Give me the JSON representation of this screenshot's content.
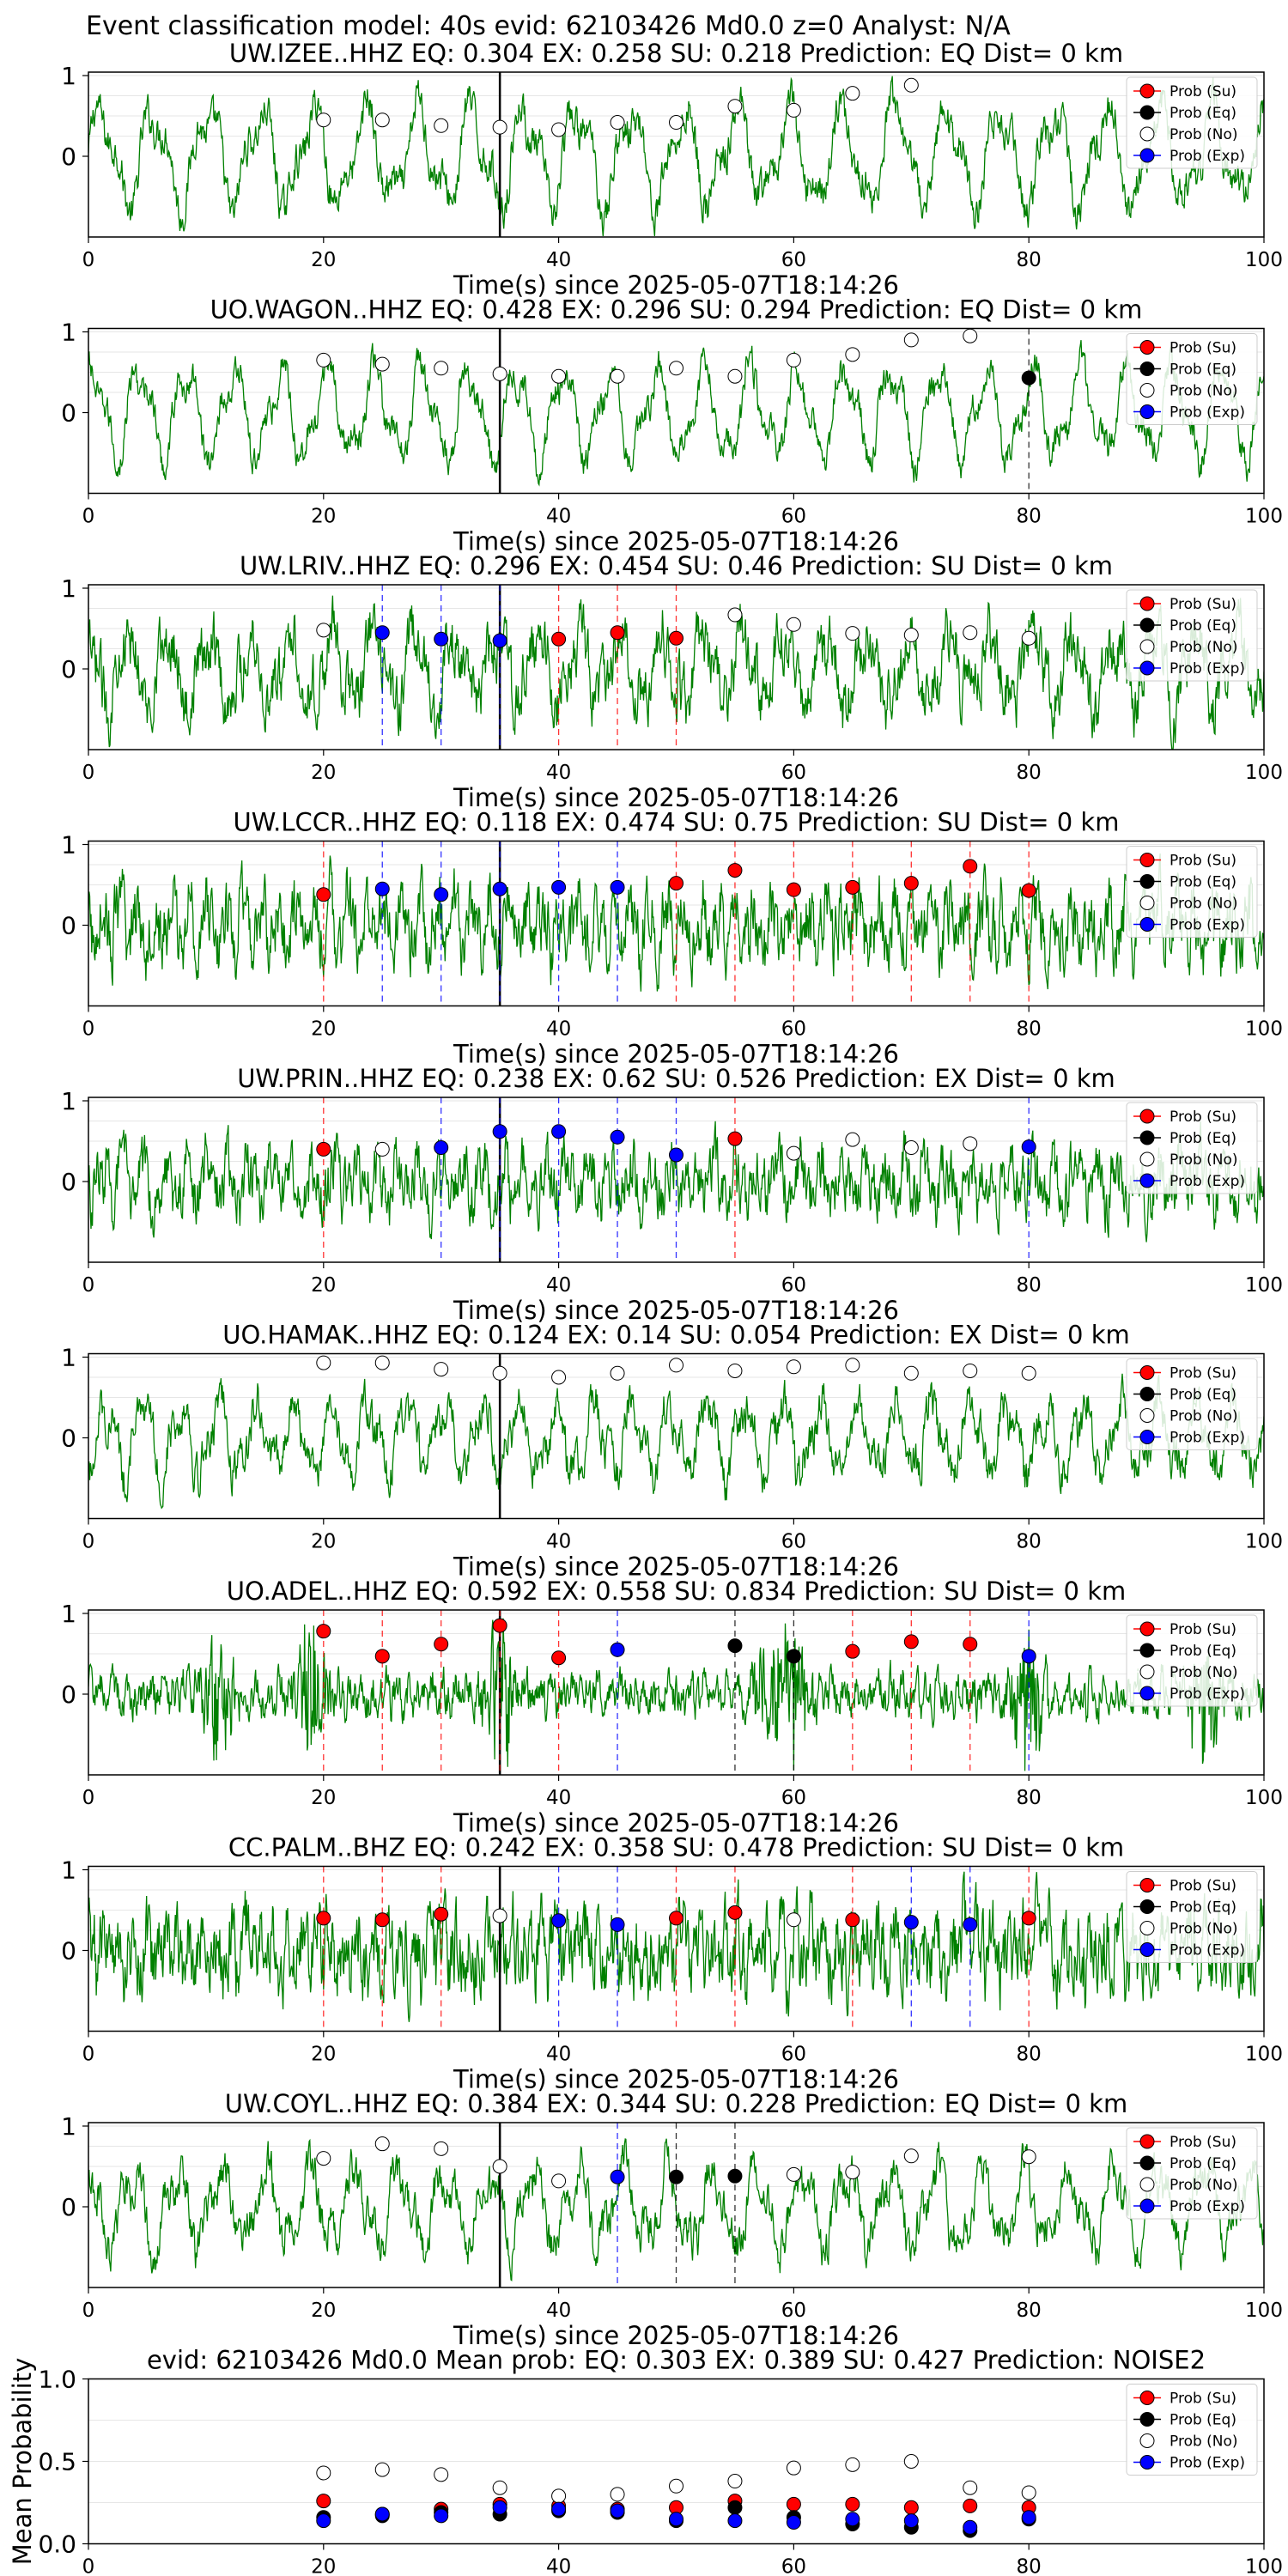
{
  "suptitle": "Event classification model: 40s evid: 62103426 Md0.0 z=0 Analyst: N/A",
  "colors": {
    "waveform": "#008000",
    "su": "#ff0000",
    "eq": "#000000",
    "no": "#ffffff",
    "exp": "#0000ff",
    "arrival": "#000000"
  },
  "legend": [
    "Prob (Su)",
    "Prob (Eq)",
    "Prob (No)",
    "Prob (Exp)"
  ],
  "x_label": "Time(s) since 2025-05-07T18:14:26",
  "x_ticks": [
    0,
    20,
    40,
    60,
    80,
    100
  ],
  "x_range": [
    0,
    100
  ],
  "y_ticks": [
    0,
    1
  ],
  "arrival_time": 35,
  "chart_data": [
    {
      "type": "line",
      "title": "UW.IZEE..HHZ   EQ: 0.304  EX: 0.258  SU: 0.218   Prediction: EQ    Dist= 0 km",
      "waveform": {
        "amp": 0.75,
        "period": 4.5,
        "noise": 0.18
      },
      "markers": [
        {
          "t": 20,
          "p": 0.45,
          "c": "no"
        },
        {
          "t": 25,
          "p": 0.45,
          "c": "no"
        },
        {
          "t": 30,
          "p": 0.38,
          "c": "no"
        },
        {
          "t": 35,
          "p": 0.36,
          "c": "no"
        },
        {
          "t": 40,
          "p": 0.33,
          "c": "no"
        },
        {
          "t": 45,
          "p": 0.42,
          "c": "no"
        },
        {
          "t": 50,
          "p": 0.42,
          "c": "no"
        },
        {
          "t": 55,
          "p": 0.62,
          "c": "no"
        },
        {
          "t": 60,
          "p": 0.57,
          "c": "no"
        },
        {
          "t": 65,
          "p": 0.78,
          "c": "no"
        },
        {
          "t": 70,
          "p": 0.88,
          "c": "no"
        }
      ]
    },
    {
      "type": "line",
      "title": "UO.WAGON..HHZ   EQ: 0.428  EX: 0.296  SU: 0.294   Prediction: EQ    Dist= 0 km",
      "waveform": {
        "amp": 0.7,
        "period": 4.0,
        "noise": 0.15
      },
      "markers": [
        {
          "t": 20,
          "p": 0.65,
          "c": "no"
        },
        {
          "t": 25,
          "p": 0.6,
          "c": "no"
        },
        {
          "t": 30,
          "p": 0.55,
          "c": "no"
        },
        {
          "t": 35,
          "p": 0.48,
          "c": "no"
        },
        {
          "t": 40,
          "p": 0.45,
          "c": "no"
        },
        {
          "t": 45,
          "p": 0.45,
          "c": "no"
        },
        {
          "t": 50,
          "p": 0.55,
          "c": "no"
        },
        {
          "t": 55,
          "p": 0.45,
          "c": "no"
        },
        {
          "t": 60,
          "p": 0.65,
          "c": "no"
        },
        {
          "t": 65,
          "p": 0.72,
          "c": "no"
        },
        {
          "t": 70,
          "p": 0.9,
          "c": "no"
        },
        {
          "t": 75,
          "p": 0.95,
          "c": "no"
        },
        {
          "t": 80,
          "p": 0.43,
          "c": "eq"
        }
      ]
    },
    {
      "type": "line",
      "title": "UW.LRIV..HHZ   EQ: 0.296  EX: 0.454  SU: 0.46   Prediction: SU    Dist= 0 km",
      "waveform": {
        "amp": 0.55,
        "period": 3.5,
        "noise": 0.3
      },
      "markers": [
        {
          "t": 20,
          "p": 0.48,
          "c": "no"
        },
        {
          "t": 25,
          "p": 0.45,
          "c": "exp"
        },
        {
          "t": 30,
          "p": 0.37,
          "c": "exp"
        },
        {
          "t": 35,
          "p": 0.35,
          "c": "exp"
        },
        {
          "t": 40,
          "p": 0.37,
          "c": "su"
        },
        {
          "t": 45,
          "p": 0.45,
          "c": "su"
        },
        {
          "t": 50,
          "p": 0.38,
          "c": "su"
        },
        {
          "t": 55,
          "p": 0.67,
          "c": "no"
        },
        {
          "t": 60,
          "p": 0.55,
          "c": "no"
        },
        {
          "t": 65,
          "p": 0.44,
          "c": "no"
        },
        {
          "t": 70,
          "p": 0.42,
          "c": "no"
        },
        {
          "t": 75,
          "p": 0.45,
          "c": "no"
        },
        {
          "t": 80,
          "p": 0.38,
          "c": "no"
        }
      ]
    },
    {
      "type": "line",
      "title": "UW.LCCR..HHZ   EQ: 0.118  EX: 0.474  SU: 0.75   Prediction: SU    Dist= 0 km",
      "waveform": {
        "amp": 0.35,
        "period": 1.5,
        "noise": 0.35
      },
      "markers": [
        {
          "t": 20,
          "p": 0.38,
          "c": "su"
        },
        {
          "t": 25,
          "p": 0.45,
          "c": "exp"
        },
        {
          "t": 30,
          "p": 0.38,
          "c": "exp"
        },
        {
          "t": 35,
          "p": 0.45,
          "c": "exp"
        },
        {
          "t": 40,
          "p": 0.47,
          "c": "exp"
        },
        {
          "t": 45,
          "p": 0.47,
          "c": "exp"
        },
        {
          "t": 50,
          "p": 0.52,
          "c": "su"
        },
        {
          "t": 55,
          "p": 0.68,
          "c": "su"
        },
        {
          "t": 60,
          "p": 0.44,
          "c": "su"
        },
        {
          "t": 65,
          "p": 0.47,
          "c": "su"
        },
        {
          "t": 70,
          "p": 0.52,
          "c": "su"
        },
        {
          "t": 75,
          "p": 0.73,
          "c": "su"
        },
        {
          "t": 80,
          "p": 0.43,
          "c": "su"
        }
      ]
    },
    {
      "type": "line",
      "title": "UW.PRIN..HHZ   EQ: 0.238  EX: 0.62  SU: 0.526   Prediction: EX    Dist= 0 km",
      "waveform": {
        "amp": 0.3,
        "period": 1.8,
        "noise": 0.3
      },
      "markers": [
        {
          "t": 20,
          "p": 0.4,
          "c": "su"
        },
        {
          "t": 25,
          "p": 0.4,
          "c": "no"
        },
        {
          "t": 30,
          "p": 0.42,
          "c": "exp"
        },
        {
          "t": 35,
          "p": 0.62,
          "c": "exp"
        },
        {
          "t": 40,
          "p": 0.62,
          "c": "exp"
        },
        {
          "t": 45,
          "p": 0.55,
          "c": "exp"
        },
        {
          "t": 50,
          "p": 0.33,
          "c": "exp"
        },
        {
          "t": 55,
          "p": 0.53,
          "c": "su"
        },
        {
          "t": 60,
          "p": 0.35,
          "c": "no"
        },
        {
          "t": 65,
          "p": 0.52,
          "c": "no"
        },
        {
          "t": 70,
          "p": 0.42,
          "c": "no"
        },
        {
          "t": 75,
          "p": 0.47,
          "c": "no"
        },
        {
          "t": 80,
          "p": 0.43,
          "c": "exp"
        }
      ]
    },
    {
      "type": "line",
      "title": "UO.HAMAK..HHZ   EQ: 0.124  EX: 0.14  SU: 0.054   Prediction: EX    Dist= 0 km",
      "waveform": {
        "amp": 0.55,
        "period": 3.2,
        "noise": 0.2
      },
      "markers": [
        {
          "t": 20,
          "p": 0.93,
          "c": "no"
        },
        {
          "t": 25,
          "p": 0.93,
          "c": "no"
        },
        {
          "t": 30,
          "p": 0.85,
          "c": "no"
        },
        {
          "t": 35,
          "p": 0.8,
          "c": "no"
        },
        {
          "t": 40,
          "p": 0.75,
          "c": "no"
        },
        {
          "t": 45,
          "p": 0.8,
          "c": "no"
        },
        {
          "t": 50,
          "p": 0.9,
          "c": "no"
        },
        {
          "t": 55,
          "p": 0.83,
          "c": "no"
        },
        {
          "t": 60,
          "p": 0.88,
          "c": "no"
        },
        {
          "t": 65,
          "p": 0.9,
          "c": "no"
        },
        {
          "t": 70,
          "p": 0.8,
          "c": "no"
        },
        {
          "t": 75,
          "p": 0.83,
          "c": "no"
        },
        {
          "t": 80,
          "p": 0.8,
          "c": "no"
        }
      ]
    },
    {
      "type": "line",
      "title": "UO.ADEL..HHZ   EQ: 0.592  EX: 0.558  SU: 0.834   Prediction: SU    Dist= 0 km",
      "waveform": {
        "amp": 0.15,
        "period": 1.0,
        "noise": 0.2,
        "bursts": [
          11,
          19,
          35,
          58,
          60,
          80,
          95
        ]
      },
      "markers": [
        {
          "t": 20,
          "p": 0.78,
          "c": "su"
        },
        {
          "t": 25,
          "p": 0.47,
          "c": "su"
        },
        {
          "t": 30,
          "p": 0.62,
          "c": "su"
        },
        {
          "t": 35,
          "p": 0.85,
          "c": "su"
        },
        {
          "t": 40,
          "p": 0.45,
          "c": "su"
        },
        {
          "t": 45,
          "p": 0.55,
          "c": "exp"
        },
        {
          "t": 55,
          "p": 0.6,
          "c": "eq"
        },
        {
          "t": 60,
          "p": 0.47,
          "c": "eq"
        },
        {
          "t": 65,
          "p": 0.53,
          "c": "su"
        },
        {
          "t": 70,
          "p": 0.65,
          "c": "su"
        },
        {
          "t": 75,
          "p": 0.62,
          "c": "su"
        },
        {
          "t": 80,
          "p": 0.47,
          "c": "exp"
        }
      ]
    },
    {
      "type": "line",
      "title": "CC.PALM..BHZ   EQ: 0.242  EX: 0.358  SU: 0.478   Prediction: SU    Dist= 0 km",
      "waveform": {
        "amp": 0.3,
        "period": 1.2,
        "noise": 0.4
      },
      "markers": [
        {
          "t": 20,
          "p": 0.4,
          "c": "su"
        },
        {
          "t": 25,
          "p": 0.38,
          "c": "su"
        },
        {
          "t": 30,
          "p": 0.45,
          "c": "su"
        },
        {
          "t": 35,
          "p": 0.43,
          "c": "no"
        },
        {
          "t": 40,
          "p": 0.37,
          "c": "exp"
        },
        {
          "t": 45,
          "p": 0.32,
          "c": "exp"
        },
        {
          "t": 50,
          "p": 0.4,
          "c": "su"
        },
        {
          "t": 55,
          "p": 0.47,
          "c": "su"
        },
        {
          "t": 60,
          "p": 0.38,
          "c": "no"
        },
        {
          "t": 65,
          "p": 0.38,
          "c": "su"
        },
        {
          "t": 70,
          "p": 0.35,
          "c": "exp"
        },
        {
          "t": 75,
          "p": 0.32,
          "c": "exp"
        },
        {
          "t": 80,
          "p": 0.4,
          "c": "su"
        }
      ]
    },
    {
      "type": "line",
      "title": "UW.COYL..HHZ   EQ: 0.384  EX: 0.344  SU: 0.228   Prediction: EQ    Dist= 0 km",
      "waveform": {
        "amp": 0.6,
        "period": 3.8,
        "noise": 0.2
      },
      "markers": [
        {
          "t": 20,
          "p": 0.6,
          "c": "no"
        },
        {
          "t": 25,
          "p": 0.78,
          "c": "no"
        },
        {
          "t": 30,
          "p": 0.72,
          "c": "no"
        },
        {
          "t": 35,
          "p": 0.5,
          "c": "no"
        },
        {
          "t": 40,
          "p": 0.32,
          "c": "no"
        },
        {
          "t": 45,
          "p": 0.37,
          "c": "exp"
        },
        {
          "t": 50,
          "p": 0.37,
          "c": "eq"
        },
        {
          "t": 55,
          "p": 0.38,
          "c": "eq"
        },
        {
          "t": 60,
          "p": 0.4,
          "c": "no"
        },
        {
          "t": 65,
          "p": 0.43,
          "c": "no"
        },
        {
          "t": 70,
          "p": 0.63,
          "c": "no"
        },
        {
          "t": 80,
          "p": 0.62,
          "c": "no"
        }
      ]
    },
    {
      "type": "scatter",
      "title": "evid: 62103426  Md0.0   Mean prob:    EQ: 0.303  EX: 0.389  SU: 0.427   Prediction: NOISE2",
      "ylabel": "Mean Probability",
      "y_ticks": [
        "0.0",
        "0.5",
        "1.0"
      ],
      "y_range": [
        0,
        1
      ],
      "x": [
        20,
        25,
        30,
        35,
        40,
        45,
        50,
        55,
        60,
        65,
        70,
        75,
        80
      ],
      "series": [
        {
          "name": "Prob (Su)",
          "c": "su",
          "values": [
            0.26,
            0.18,
            0.21,
            0.24,
            0.23,
            0.21,
            0.22,
            0.26,
            0.24,
            0.24,
            0.22,
            0.23,
            0.22
          ]
        },
        {
          "name": "Prob (Eq)",
          "c": "eq",
          "values": [
            0.16,
            0.17,
            0.19,
            0.18,
            0.2,
            0.19,
            0.14,
            0.22,
            0.16,
            0.12,
            0.1,
            0.08,
            0.15
          ]
        },
        {
          "name": "Prob (No)",
          "c": "no",
          "values": [
            0.43,
            0.45,
            0.42,
            0.34,
            0.29,
            0.3,
            0.35,
            0.38,
            0.46,
            0.48,
            0.5,
            0.34,
            0.31
          ]
        },
        {
          "name": "Prob (Exp)",
          "c": "exp",
          "values": [
            0.14,
            0.18,
            0.17,
            0.22,
            0.21,
            0.2,
            0.15,
            0.14,
            0.13,
            0.15,
            0.14,
            0.1,
            0.16
          ]
        }
      ]
    }
  ]
}
